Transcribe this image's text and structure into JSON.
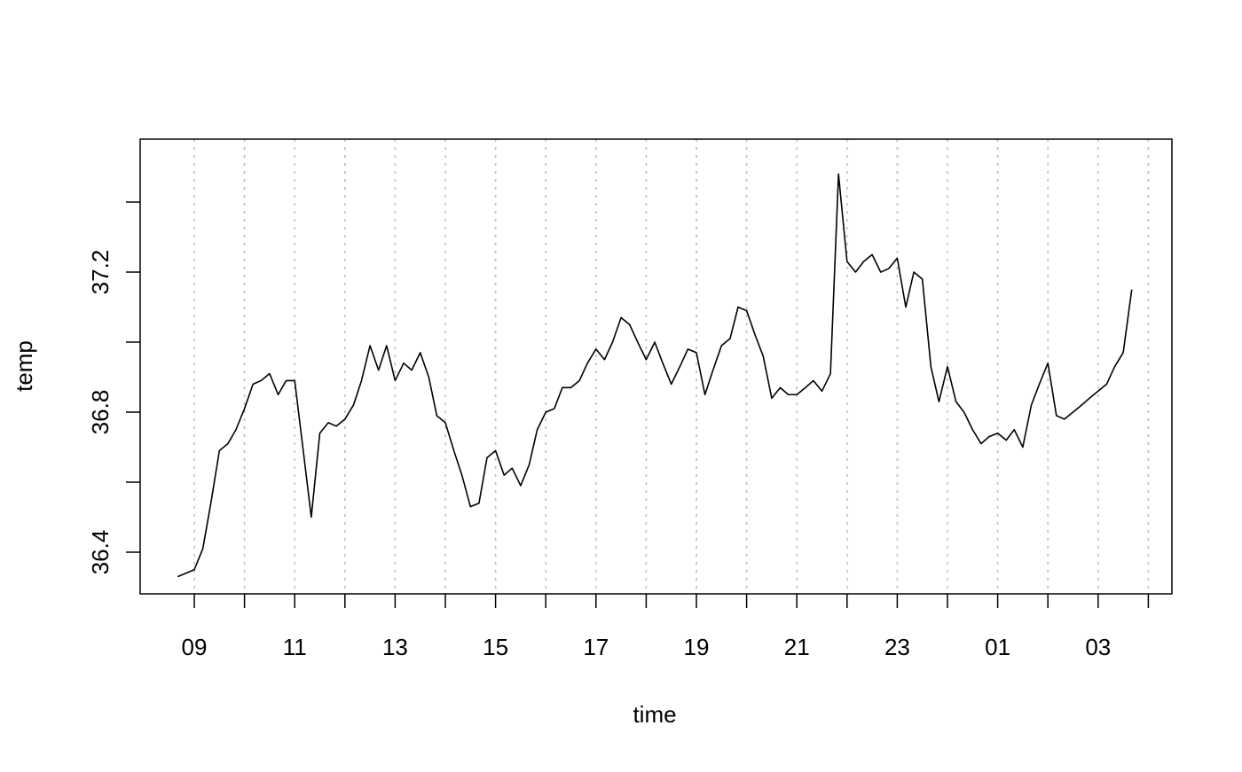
{
  "chart_data": {
    "type": "line",
    "title": "",
    "xlabel": "time",
    "ylabel": "temp",
    "grid": "vertical dotted",
    "colors": {
      "line": "#000000",
      "grid": "#bdbdbd",
      "frame": "#000000"
    },
    "x_ticks": [
      "09",
      "11",
      "13",
      "15",
      "17",
      "19",
      "21",
      "23",
      "01",
      "03"
    ],
    "y_ticks": [
      "36.4",
      "36.8",
      "37.2"
    ],
    "ylim": [
      36.27,
      37.53
    ],
    "x_hours": [
      8.67,
      9.0,
      9.17,
      9.33,
      9.5,
      9.67,
      9.83,
      10.0,
      10.17,
      10.33,
      10.5,
      10.67,
      10.83,
      11.0,
      11.17,
      11.33,
      11.5,
      11.67,
      11.83,
      12.0,
      12.17,
      12.33,
      12.5,
      12.67,
      12.83,
      13.0,
      13.17,
      13.33,
      13.5,
      13.67,
      13.83,
      14.0,
      14.17,
      14.33,
      14.5,
      14.67,
      14.83,
      15.0,
      15.17,
      15.33,
      15.5,
      15.67,
      15.83,
      16.0,
      16.17,
      16.33,
      16.5,
      16.67,
      16.83,
      17.0,
      17.17,
      17.33,
      17.5,
      17.67,
      17.83,
      18.0,
      18.17,
      18.33,
      18.5,
      18.67,
      18.83,
      19.0,
      19.17,
      19.33,
      19.5,
      19.67,
      19.83,
      20.0,
      20.17,
      20.33,
      20.5,
      20.67,
      20.83,
      21.0,
      21.17,
      21.33,
      21.5,
      21.67,
      21.83,
      22.0,
      22.17,
      22.33,
      22.5,
      22.67,
      22.83,
      23.0,
      23.17,
      23.33,
      23.5,
      23.67,
      23.83,
      24.0,
      24.17,
      24.33,
      24.5,
      24.67,
      24.83,
      25.0,
      25.17,
      25.33,
      25.5,
      25.67,
      25.83,
      26.0,
      26.17,
      26.33,
      26.5,
      26.67,
      26.83,
      27.0,
      27.17,
      27.33,
      27.5,
      27.67
    ],
    "series": [
      {
        "values": [
          36.33,
          36.35,
          36.41,
          36.54,
          36.69,
          36.71,
          36.75,
          36.81,
          36.88,
          36.89,
          36.91,
          36.85,
          36.89,
          36.89,
          36.69,
          36.5,
          36.74,
          36.77,
          36.76,
          36.78,
          36.82,
          36.89,
          36.99,
          36.92,
          36.99,
          36.89,
          36.94,
          36.92,
          36.97,
          36.9,
          36.79,
          36.77,
          36.69,
          36.62,
          36.53,
          36.54,
          36.67,
          36.69,
          36.62,
          36.64,
          36.59,
          36.65,
          36.75,
          36.8,
          36.81,
          36.87,
          36.87,
          36.89,
          36.94,
          36.98,
          36.95,
          37.0,
          37.07,
          37.05,
          37.0,
          36.95,
          37.0,
          36.94,
          36.88,
          36.93,
          36.98,
          36.97,
          36.85,
          36.92,
          36.99,
          37.01,
          37.1,
          37.09,
          37.02,
          36.96,
          36.84,
          36.87,
          36.85,
          36.85,
          36.87,
          36.89,
          36.86,
          36.91,
          37.48,
          37.23,
          37.2,
          37.23,
          37.25,
          37.2,
          37.21,
          37.24,
          37.1,
          37.2,
          37.18,
          36.93,
          36.83,
          36.93,
          36.83,
          36.8,
          36.75,
          36.71,
          36.73,
          36.74,
          36.72,
          36.75,
          36.7,
          36.82,
          36.88,
          36.94,
          36.79,
          36.78,
          36.8,
          36.82,
          36.84,
          36.86,
          36.88,
          36.93,
          36.97,
          37.15
        ]
      }
    ]
  }
}
